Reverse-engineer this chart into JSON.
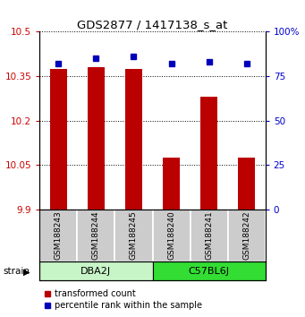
{
  "title": "GDS2877 / 1417138_s_at",
  "samples": [
    "GSM188243",
    "GSM188244",
    "GSM188245",
    "GSM188240",
    "GSM188241",
    "GSM188242"
  ],
  "red_values": [
    10.375,
    10.38,
    10.375,
    10.075,
    10.28,
    10.075
  ],
  "blue_values": [
    82,
    85,
    86,
    82,
    83,
    82
  ],
  "ylim_left": [
    9.9,
    10.5
  ],
  "ylim_right": [
    0,
    100
  ],
  "yticks_left": [
    9.9,
    10.05,
    10.2,
    10.35,
    10.5
  ],
  "ytick_labels_left": [
    "9.9",
    "10.05",
    "10.2",
    "10.35",
    "10.5"
  ],
  "yticks_right": [
    0,
    25,
    50,
    75,
    100
  ],
  "ytick_labels_right": [
    "0",
    "25",
    "50",
    "75",
    "100%"
  ],
  "groups": [
    {
      "label": "DBA2J",
      "indices": [
        0,
        1,
        2
      ],
      "color": "#c8f5c8"
    },
    {
      "label": "C57BL6J",
      "indices": [
        3,
        4,
        5
      ],
      "color": "#33dd33"
    }
  ],
  "strain_label": "strain",
  "red_color": "#bb0000",
  "blue_color": "#0000bb",
  "bar_base": 9.9,
  "background_color": "#ffffff",
  "label_color_left": "#cc0000",
  "label_color_right": "#0000cc",
  "legend_red": "transformed count",
  "legend_blue": "percentile rank within the sample",
  "bar_width": 0.45
}
